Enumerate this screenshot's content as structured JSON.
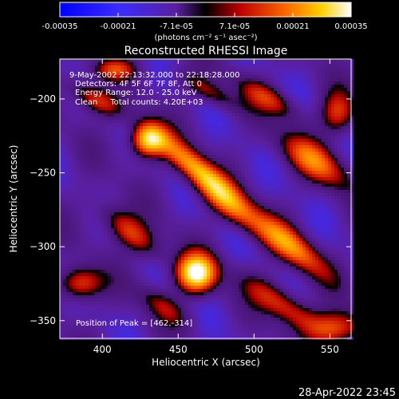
{
  "chart_data": {
    "type": "heatmap",
    "title": "Reconstructed RHESSI Image",
    "xlabel": "Heliocentric X (arcsec)",
    "ylabel": "Heliocentric Y (arcsec)",
    "xlim": [
      372,
      564
    ],
    "ylim": [
      -362,
      -173
    ],
    "x_ticks": [
      400,
      450,
      500,
      550
    ],
    "y_ticks": [
      -200,
      -250,
      -300,
      -350
    ],
    "colorbar": {
      "range": [
        -0.00035,
        0.00035
      ],
      "tick_labels": [
        "-0.00035",
        "-0.00021",
        "-7.1e-05",
        "7.1e-05",
        "0.00021",
        "0.00035"
      ],
      "units_text": "(photons cm⁻² s⁻¹ asec⁻²)"
    },
    "annotations": [
      "9-May-2002 22:13:32.000 to 22:18:28.000",
      "Detectors: 4F 5F 6F 7F 8F, Att 0",
      "Energy Range: 12.0 - 25.0 keV",
      "Clean     Total counts: 4.20E+03"
    ],
    "peak_label": "Position of Peak = [462,-314]",
    "peak": {
      "x": 462,
      "y": -314
    },
    "blobs": [
      {
        "x": 462,
        "y": -318,
        "amp": 1.0,
        "sx": 9,
        "sy": 9
      },
      {
        "x": 430,
        "y": -228,
        "amp": 0.85,
        "sx": 8,
        "sy": 8
      },
      {
        "x": 540,
        "y": -242,
        "amp": 0.55,
        "sx": 18,
        "sy": 8,
        "rot": -35
      },
      {
        "x": 525,
        "y": -300,
        "amp": 0.6,
        "sx": 20,
        "sy": 7,
        "rot": -40
      },
      {
        "x": 482,
        "y": -270,
        "amp": 0.55,
        "sx": 22,
        "sy": 7,
        "rot": -40
      },
      {
        "x": 460,
        "y": -245,
        "amp": 0.6,
        "sx": 24,
        "sy": 6,
        "rot": -40
      },
      {
        "x": 418,
        "y": -290,
        "amp": 0.5,
        "sx": 18,
        "sy": 7,
        "rot": -40
      },
      {
        "x": 395,
        "y": -200,
        "amp": 0.5,
        "sx": 14,
        "sy": 6,
        "rot": -30
      },
      {
        "x": 510,
        "y": -200,
        "amp": 0.4,
        "sx": 16,
        "sy": 6,
        "rot": -30
      },
      {
        "x": 555,
        "y": -210,
        "amp": 0.45,
        "sx": 8,
        "sy": 10
      },
      {
        "x": 520,
        "y": -340,
        "amp": 0.5,
        "sx": 22,
        "sy": 7,
        "rot": -35
      },
      {
        "x": 385,
        "y": -325,
        "amp": 0.55,
        "sx": 10,
        "sy": 8
      },
      {
        "x": 555,
        "y": -355,
        "amp": 0.5,
        "sx": 12,
        "sy": 8
      },
      {
        "x": 470,
        "y": -195,
        "amp": 0.35,
        "sx": 16,
        "sy": 5,
        "rot": -30
      },
      {
        "x": 440,
        "y": -340,
        "amp": 0.3,
        "sx": 14,
        "sy": 6,
        "rot": -35
      },
      {
        "x": 408,
        "y": -180,
        "amp": 0.4,
        "sx": 10,
        "sy": 5
      }
    ]
  },
  "footer": {
    "timestamp": "28-Apr-2022 23:45"
  }
}
